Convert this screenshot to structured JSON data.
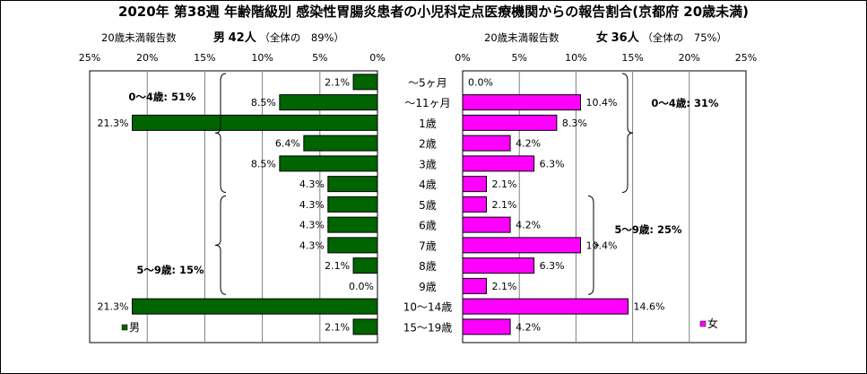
{
  "chart_data": {
    "type": "bar",
    "orientation": "horizontal",
    "title": "2020年 第38週 年齢階級別 感染性胃腸炎患者の小児科定点医療機関からの報告割合(京都府 20歳未満)",
    "categories": [
      "～5ヶ月",
      "～11ヶ月",
      "1歳",
      "2歳",
      "3歳",
      "4歳",
      "5歳",
      "6歳",
      "7歳",
      "8歳",
      "9歳",
      "10～14歳",
      "15～19歳"
    ],
    "panels": [
      {
        "side": "left",
        "header_label": "20歳未満報告数",
        "header_sex": "男",
        "header_count": "42人",
        "header_share": "（全体の　89%）",
        "series_name": "男",
        "color": "#006400",
        "values": [
          2.1,
          8.5,
          21.3,
          6.4,
          8.5,
          4.3,
          4.3,
          4.3,
          4.3,
          2.1,
          0.0,
          21.3,
          2.1
        ],
        "value_labels": [
          "2.1%",
          "8.5%",
          "21.3%",
          "6.4%",
          "8.5%",
          "4.3%",
          "4.3%",
          "4.3%",
          "4.3%",
          "2.1%",
          "0.0%",
          "21.3%",
          "2.1%"
        ],
        "xlim": [
          0,
          25
        ],
        "ticks": [
          "25%",
          "20%",
          "15%",
          "10%",
          "5%",
          "0%"
        ],
        "brackets": [
          {
            "label": "0～4歳: 51%",
            "from": 0,
            "to": 5
          },
          {
            "label": "5～9歳: 15%",
            "from": 6,
            "to": 10
          }
        ],
        "legend": "男"
      },
      {
        "side": "right",
        "header_label": "20歳未満報告数",
        "header_sex": "女",
        "header_count": "36人",
        "header_share": "（全体の　75%）",
        "series_name": "女",
        "color": "#ff00ff",
        "values": [
          0.0,
          10.4,
          8.3,
          4.2,
          6.3,
          2.1,
          2.1,
          4.2,
          10.4,
          6.3,
          2.1,
          14.6,
          4.2
        ],
        "value_labels": [
          "0.0%",
          "10.4%",
          "8.3%",
          "4.2%",
          "6.3%",
          "2.1%",
          "2.1%",
          "4.2%",
          "10.4%",
          "6.3%",
          "2.1%",
          "14.6%",
          "4.2%"
        ],
        "xlim": [
          0,
          25
        ],
        "ticks": [
          "0%",
          "5%",
          "10%",
          "15%",
          "20%",
          "25%"
        ],
        "brackets": [
          {
            "label": "0～4歳: 31%",
            "from": 0,
            "to": 5
          },
          {
            "label": "5～9歳: 25%",
            "from": 6,
            "to": 10
          }
        ],
        "legend": "女"
      }
    ],
    "grid": true
  }
}
